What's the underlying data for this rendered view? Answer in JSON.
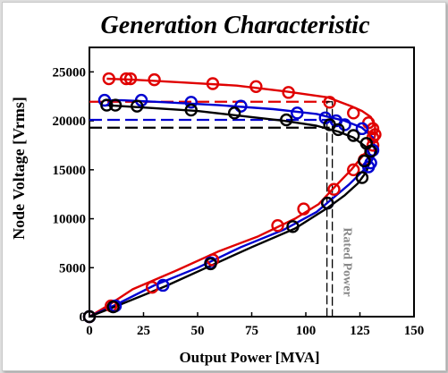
{
  "chart_data": {
    "type": "line",
    "title": "Generation Characteristic",
    "xlabel": "Output  Power [MVA]",
    "ylabel": "Node Voltage [Vrms]",
    "xlim": [
      0,
      150
    ],
    "ylim": [
      0,
      27500
    ],
    "xticks": [
      "0",
      "25",
      "50",
      "75",
      "100",
      "125",
      "150"
    ],
    "yticks": [
      "0",
      "5000",
      "10000",
      "15000",
      "20000",
      "25000"
    ],
    "grid": false,
    "legend": "none",
    "series": [
      {
        "color": "#e00000",
        "x": [
          0,
          9,
          20,
          40,
          60,
          78,
          95,
          106,
          114,
          121,
          127,
          131,
          132,
          132,
          130,
          126,
          121,
          110,
          91,
          68,
          45,
          20,
          8
        ],
        "y": [
          0,
          1200,
          2800,
          4700,
          6700,
          8200,
          10000,
          11500,
          13400,
          15000,
          16600,
          17700,
          18500,
          19500,
          20400,
          21000,
          21500,
          22400,
          23000,
          23600,
          23900,
          24200,
          24300
        ],
        "markers_x": [
          0,
          10,
          29,
          57,
          87,
          99,
          113,
          122,
          127,
          131,
          131,
          132,
          131,
          129,
          122,
          111,
          92,
          77,
          57,
          30,
          19,
          17,
          9
        ],
        "markers_y": [
          0,
          1100,
          3000,
          5800,
          9300,
          11000,
          13000,
          15000,
          16000,
          17500,
          18300,
          18600,
          19200,
          19800,
          20800,
          21900,
          22900,
          23500,
          23800,
          24200,
          24300,
          24300,
          24300
        ]
      },
      {
        "color": "#0000d0",
        "x": [
          0,
          12,
          30,
          50,
          70,
          90,
          105,
          113,
          120,
          126,
          130,
          132,
          131,
          126,
          118,
          105,
          85,
          60,
          35,
          15,
          7
        ],
        "y": [
          0,
          1200,
          3200,
          5000,
          7100,
          8900,
          10700,
          12200,
          13500,
          14800,
          15700,
          16700,
          18300,
          19300,
          20000,
          20700,
          21200,
          21600,
          21900,
          22100,
          22100
        ],
        "markers_x": [
          0,
          12,
          34,
          56,
          110,
          129,
          130,
          131,
          126,
          118,
          114,
          109,
          96,
          70,
          47,
          24,
          7
        ],
        "markers_y": [
          0,
          1100,
          3200,
          5500,
          11600,
          15300,
          15700,
          17000,
          19200,
          19600,
          20000,
          20300,
          20800,
          21500,
          21900,
          22100,
          22100
        ]
      },
      {
        "color": "#000000",
        "x": [
          0,
          15,
          35,
          55,
          75,
          95,
          110,
          118,
          124,
          128,
          130,
          128,
          122,
          115,
          105,
          90,
          70,
          50,
          30,
          15,
          8
        ],
        "y": [
          0,
          1300,
          3100,
          5100,
          7100,
          9000,
          11100,
          12400,
          13600,
          14800,
          16300,
          17300,
          18300,
          18900,
          19500,
          20000,
          20500,
          21000,
          21300,
          21500,
          21600
        ],
        "markers_x": [
          0,
          11,
          56,
          94,
          110,
          126,
          127,
          130,
          128,
          122,
          115,
          111,
          91,
          67,
          47,
          22,
          12,
          8
        ],
        "markers_y": [
          0,
          1000,
          5400,
          9200,
          11600,
          14200,
          15900,
          16900,
          17700,
          18500,
          19100,
          19600,
          20100,
          20800,
          21100,
          21500,
          21600,
          21600
        ]
      }
    ],
    "reference_lines": [
      {
        "color": "#e00000",
        "y": 21950,
        "x_end": 111
      },
      {
        "color": "#0000d0",
        "y": 20100,
        "x_end": 111
      },
      {
        "color": "#000000",
        "y": 19300,
        "x_end": 111
      }
    ],
    "rated_power": {
      "x": 111,
      "label": "Rated Power",
      "color": "#888888"
    }
  }
}
